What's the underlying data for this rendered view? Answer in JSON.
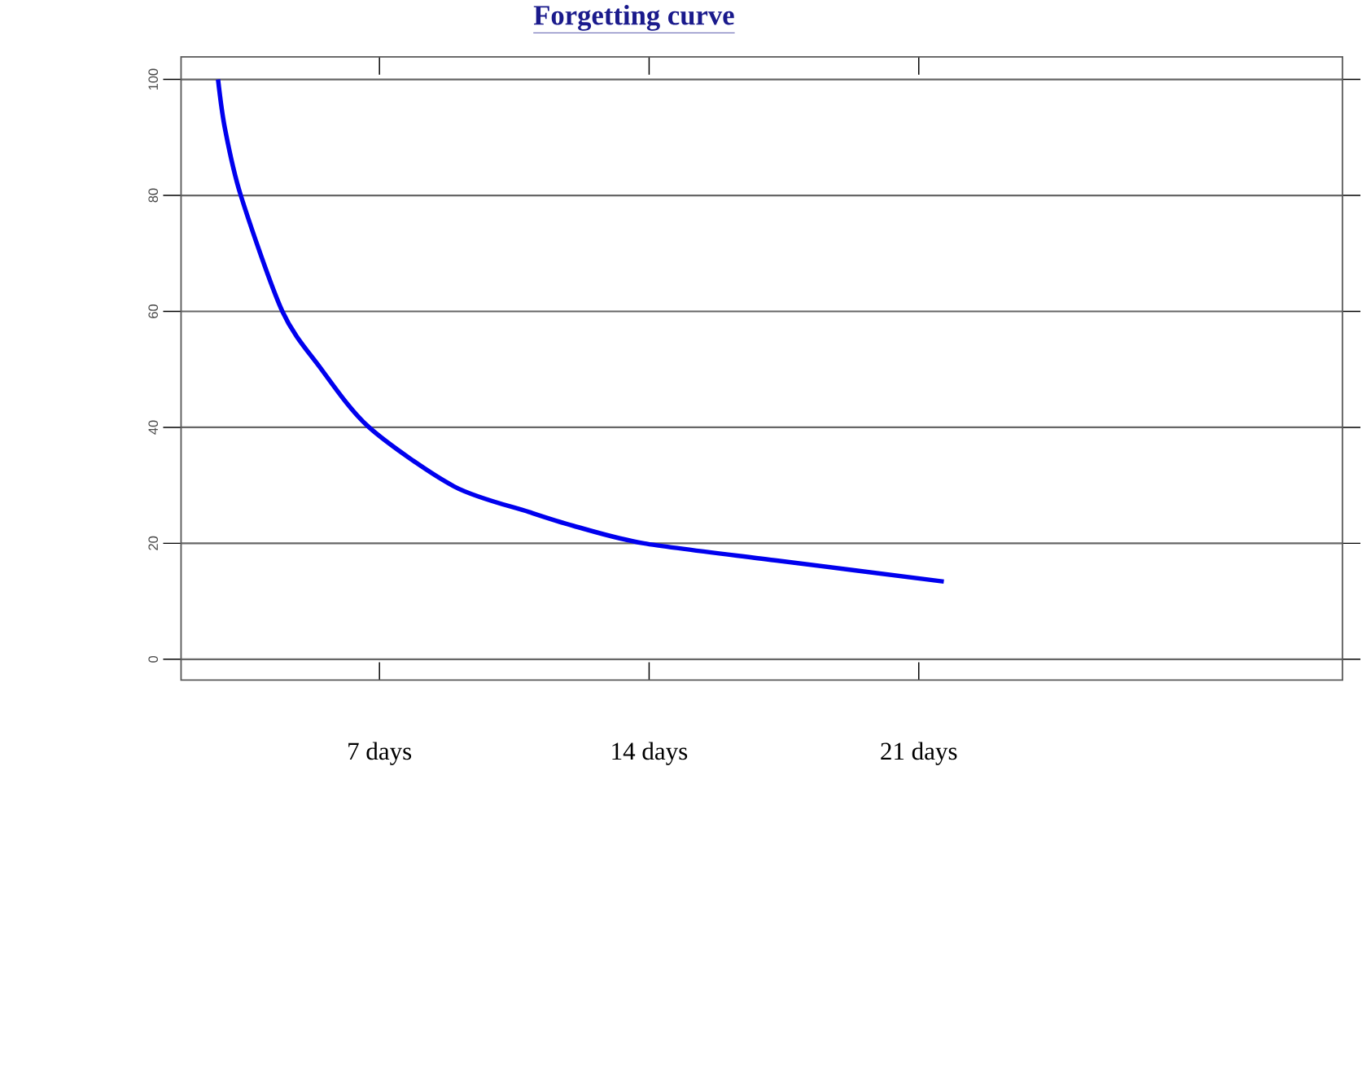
{
  "chart_data": {
    "type": "line",
    "title": "Forgetting curve",
    "x": [
      2.81,
      2.99,
      3.4,
      4.48,
      5.45,
      6.73,
      8.94,
      10.88,
      12.04,
      13.86,
      17.35,
      21.65
    ],
    "values": [
      100,
      91.5,
      80,
      60,
      50.4,
      40,
      29.8,
      25.4,
      23,
      20,
      17,
      13.4
    ],
    "color": "#0000ee",
    "xlim": [
      1.85,
      32
    ],
    "ylim": [
      -3.6,
      103.9
    ],
    "xticks": [
      {
        "value": 7,
        "label": "7 days"
      },
      {
        "value": 14,
        "label": "14 days"
      },
      {
        "value": 21,
        "label": "21 days"
      }
    ],
    "yticks": [
      0,
      20,
      40,
      60,
      80,
      100
    ],
    "grid": "y",
    "marker": "none",
    "line_style": "solid"
  }
}
